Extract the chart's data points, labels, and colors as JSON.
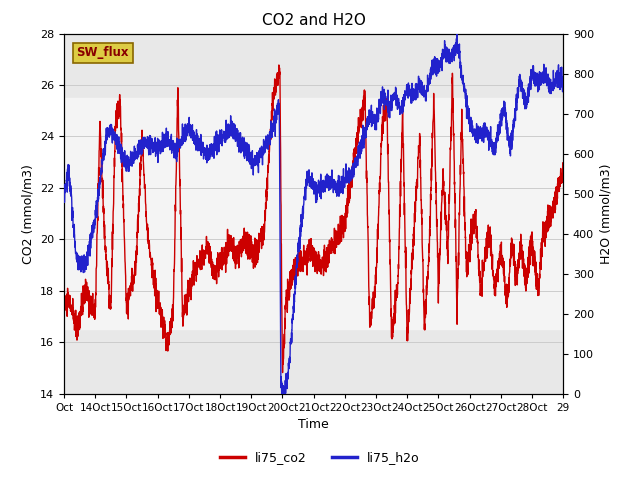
{
  "title": "CO2 and H2O",
  "xlabel": "Time",
  "ylabel_left": "CO2 (mmol/m3)",
  "ylabel_right": "H2O (mmol/m3)",
  "ylim_left": [
    14,
    28
  ],
  "ylim_right": [
    0,
    900
  ],
  "yticks_left": [
    14,
    16,
    18,
    20,
    22,
    24,
    26,
    28
  ],
  "yticks_right": [
    0,
    100,
    200,
    300,
    400,
    500,
    600,
    700,
    800,
    900
  ],
  "shade_lo": 16.5,
  "shade_hi": 25.5,
  "color_co2": "#cc0000",
  "color_h2o": "#2222cc",
  "sw_flux_label": "SW_flux",
  "sw_flux_facecolor": "#ddcc44",
  "sw_flux_edgecolor": "#886600",
  "legend_co2": "li75_co2",
  "legend_h2o": "li75_h2o",
  "background_color": "#ffffff",
  "plot_bg_color": "#e8e8e8",
  "shade_color": "#f4f4f4",
  "grid_color": "#cccccc",
  "title_fontsize": 11,
  "axis_label_fontsize": 9,
  "tick_fontsize": 8,
  "legend_fontsize": 9,
  "linewidth_co2": 1.0,
  "linewidth_h2o": 1.0
}
